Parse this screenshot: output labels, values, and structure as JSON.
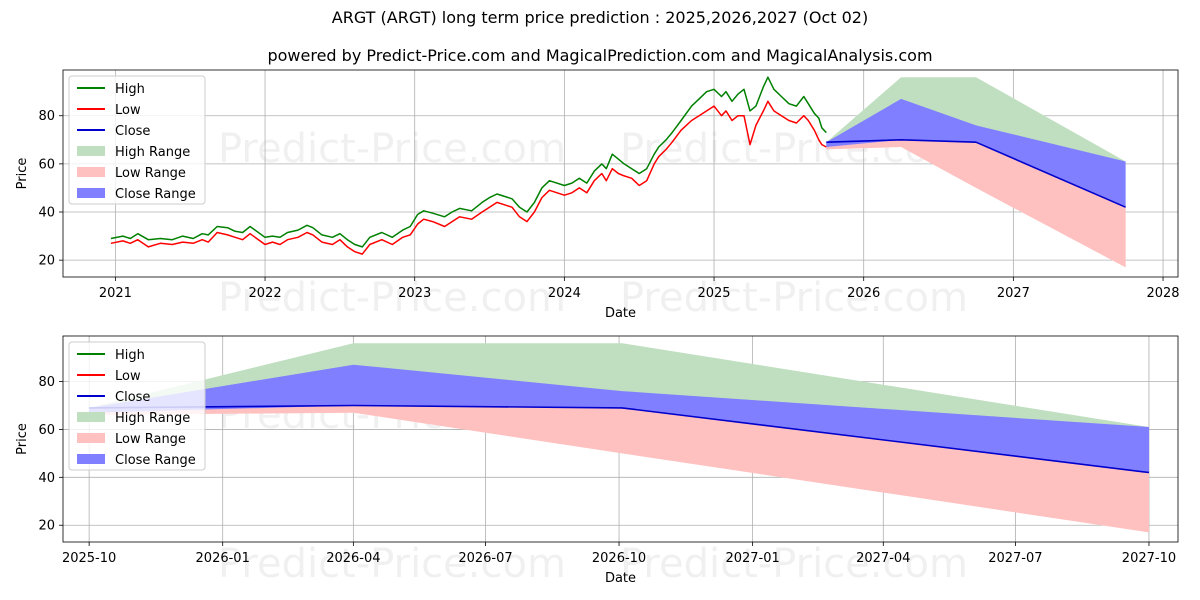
{
  "title": "ARGT (ARGT) long term price prediction : 2025,2026,2027 (Oct 02)",
  "subtitle": "powered by Predict-Price.com and MagicalPrediction.com and MagicalAnalysis.com",
  "watermark": "Predict-Price.com",
  "colors": {
    "high": "#008000",
    "low": "#ff0000",
    "close": "#0000cc",
    "high_range": "#c0dfc0",
    "low_range": "#ffc0c0",
    "close_range": "#7f7fff",
    "grid": "#b0b0b0"
  },
  "chart_data": [
    {
      "type": "line",
      "panel": "top",
      "xlabel": "Date",
      "ylabel": "Price",
      "xlim": [
        2020.65,
        2028.1
      ],
      "ylim": [
        13,
        99
      ],
      "xticks": [
        2021,
        2022,
        2023,
        2024,
        2025,
        2026,
        2027,
        2028
      ],
      "xtick_labels": [
        "2021",
        "2022",
        "2023",
        "2024",
        "2025",
        "2026",
        "2027",
        "2028"
      ],
      "yticks": [
        20,
        40,
        60,
        80
      ],
      "ytick_labels": [
        "20",
        "40",
        "60",
        "80"
      ],
      "legend": [
        "High",
        "Low",
        "Close",
        "High Range",
        "Low Range",
        "Close Range"
      ],
      "legend_position": "top-left",
      "history": {
        "x": [
          2020.97,
          2021.05,
          2021.1,
          2021.15,
          2021.22,
          2021.3,
          2021.38,
          2021.45,
          2021.52,
          2021.58,
          2021.62,
          2021.68,
          2021.75,
          2021.8,
          2021.85,
          2021.9,
          2022.0,
          2022.05,
          2022.1,
          2022.15,
          2022.22,
          2022.28,
          2022.32,
          2022.38,
          2022.45,
          2022.5,
          2022.55,
          2022.6,
          2022.65,
          2022.7,
          2022.78,
          2022.85,
          2022.92,
          2022.97,
          2023.02,
          2023.06,
          2023.12,
          2023.2,
          2023.25,
          2023.3,
          2023.38,
          2023.45,
          2023.5,
          2023.55,
          2023.6,
          2023.65,
          2023.7,
          2023.75,
          2023.8,
          2023.85,
          2023.9,
          2024.0,
          2024.05,
          2024.1,
          2024.15,
          2024.2,
          2024.25,
          2024.28,
          2024.32,
          2024.36,
          2024.4,
          2024.45,
          2024.5,
          2024.55,
          2024.6,
          2024.63,
          2024.68,
          2024.72,
          2024.78,
          2024.85,
          2024.9,
          2024.95,
          2025.0,
          2025.05,
          2025.08,
          2025.12,
          2025.16,
          2025.2,
          2025.24,
          2025.28,
          2025.33,
          2025.36,
          2025.4,
          2025.45,
          2025.5,
          2025.55,
          2025.6,
          2025.63,
          2025.67,
          2025.7,
          2025.72,
          2025.75
        ],
        "close": [
          28,
          29,
          28,
          30,
          27,
          28,
          27.5,
          29,
          28,
          30,
          29,
          33,
          32,
          31,
          30,
          33,
          28,
          29,
          28,
          30,
          31,
          33,
          32,
          29,
          28,
          30,
          27,
          25,
          24,
          28,
          30,
          28,
          31,
          32,
          37,
          39,
          38,
          36,
          38,
          40,
          39,
          42,
          44,
          46,
          45,
          44,
          40,
          38,
          42,
          48,
          51,
          49,
          50,
          52,
          50,
          55,
          58,
          55,
          60,
          59,
          57,
          56,
          54,
          56,
          62,
          65,
          68,
          71,
          76,
          81,
          83,
          86,
          87,
          84,
          86,
          82,
          85,
          86,
          78,
          80,
          87,
          90,
          86,
          84,
          81,
          80,
          84,
          81,
          77,
          72,
          71,
          69
        ],
        "high": [
          29,
          30,
          29,
          31,
          28.5,
          29,
          28.5,
          30,
          29,
          31,
          30.5,
          34,
          33.5,
          32,
          31.5,
          34,
          29.5,
          30,
          29.5,
          31.5,
          32.5,
          34.5,
          33.5,
          30.5,
          29.5,
          31,
          28.5,
          26.5,
          25.5,
          29.5,
          31.5,
          29.5,
          32.5,
          34,
          39,
          40.5,
          39.5,
          38,
          40,
          41.5,
          40.5,
          44,
          46,
          47.5,
          46.5,
          45.5,
          42,
          40,
          44,
          50,
          53,
          51,
          52,
          54,
          52,
          57,
          60,
          58,
          64,
          62,
          60,
          58,
          56,
          58,
          64,
          67,
          70,
          73,
          78,
          84,
          87,
          90,
          91,
          88,
          90,
          86,
          89,
          91,
          82,
          84,
          92,
          96,
          91,
          88,
          85,
          84,
          88,
          85,
          81,
          79,
          75,
          73
        ],
        "low": [
          27,
          28,
          27,
          28.5,
          25.5,
          27,
          26.5,
          27.5,
          27,
          28.5,
          27.5,
          31.5,
          30.5,
          29.5,
          28.5,
          31,
          26.5,
          27.5,
          26.5,
          28.5,
          29.5,
          31.5,
          30.5,
          27.5,
          26.5,
          28.5,
          25.5,
          23.5,
          22.5,
          26.5,
          28.5,
          26.5,
          29.5,
          30.5,
          35,
          37,
          36,
          34,
          36,
          38,
          37,
          40,
          42,
          44,
          43,
          42,
          38,
          36,
          40,
          46,
          49,
          47,
          48,
          50,
          48,
          53,
          56,
          53,
          58,
          56,
          55,
          54,
          51,
          53,
          60,
          63,
          66,
          69,
          74,
          78,
          80,
          82,
          84,
          80,
          82,
          78,
          80,
          80,
          68,
          76,
          82,
          86,
          82,
          80,
          78,
          77,
          80,
          78,
          74,
          70,
          68,
          67
        ]
      },
      "forecast": {
        "x": [
          2025.75,
          2026.25,
          2026.75,
          2027.75
        ],
        "close": [
          69,
          70,
          69,
          42
        ],
        "high_range_upper": [
          69,
          96,
          96,
          61
        ],
        "high_range_lower": [
          67,
          70,
          69,
          17
        ],
        "low_range_upper": [
          68,
          70,
          69,
          42
        ],
        "low_range_lower": [
          66,
          67,
          50,
          17
        ],
        "close_range_upper": [
          69,
          87,
          76,
          61
        ],
        "close_range_lower": [
          67,
          70,
          69,
          42
        ]
      }
    },
    {
      "type": "line",
      "panel": "bottom",
      "xlabel": "Date",
      "ylabel": "Price",
      "xlim": [
        -18,
        750
      ],
      "ylim": [
        13,
        99
      ],
      "x_units": "days since 2025-10-01",
      "xticks": [
        0,
        92,
        182,
        273,
        365,
        457,
        547,
        638,
        730
      ],
      "xtick_labels": [
        "2025-10",
        "2026-01",
        "2026-04",
        "2026-07",
        "2026-10",
        "2027-01",
        "2027-04",
        "2027-07",
        "2027-10"
      ],
      "yticks": [
        20,
        40,
        60,
        80
      ],
      "ytick_labels": [
        "20",
        "40",
        "60",
        "80"
      ],
      "legend": [
        "High",
        "Low",
        "Close",
        "High Range",
        "Low Range",
        "Close Range"
      ],
      "legend_position": "top-left",
      "forecast": {
        "x": [
          0,
          182,
          367,
          730
        ],
        "close": [
          69,
          70,
          69,
          42
        ],
        "high_range_upper": [
          69,
          96,
          96,
          61
        ],
        "high_range_lower": [
          67,
          70,
          69,
          17
        ],
        "low_range_upper": [
          68,
          70,
          69,
          42
        ],
        "low_range_lower": [
          66,
          67,
          50,
          17
        ],
        "close_range_upper": [
          69,
          87,
          76,
          61
        ],
        "close_range_lower": [
          67,
          70,
          69,
          42
        ]
      }
    }
  ]
}
